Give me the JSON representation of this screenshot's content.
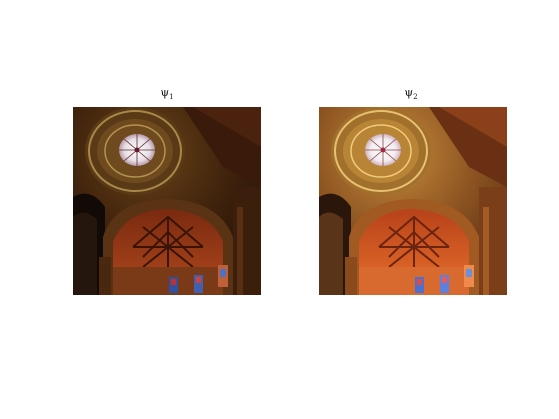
{
  "figure": {
    "panels": [
      {
        "symbol": "ψ",
        "subscript": "1",
        "tone": "dark"
      },
      {
        "symbol": "ψ",
        "subscript": "2",
        "tone": "bright"
      }
    ]
  }
}
